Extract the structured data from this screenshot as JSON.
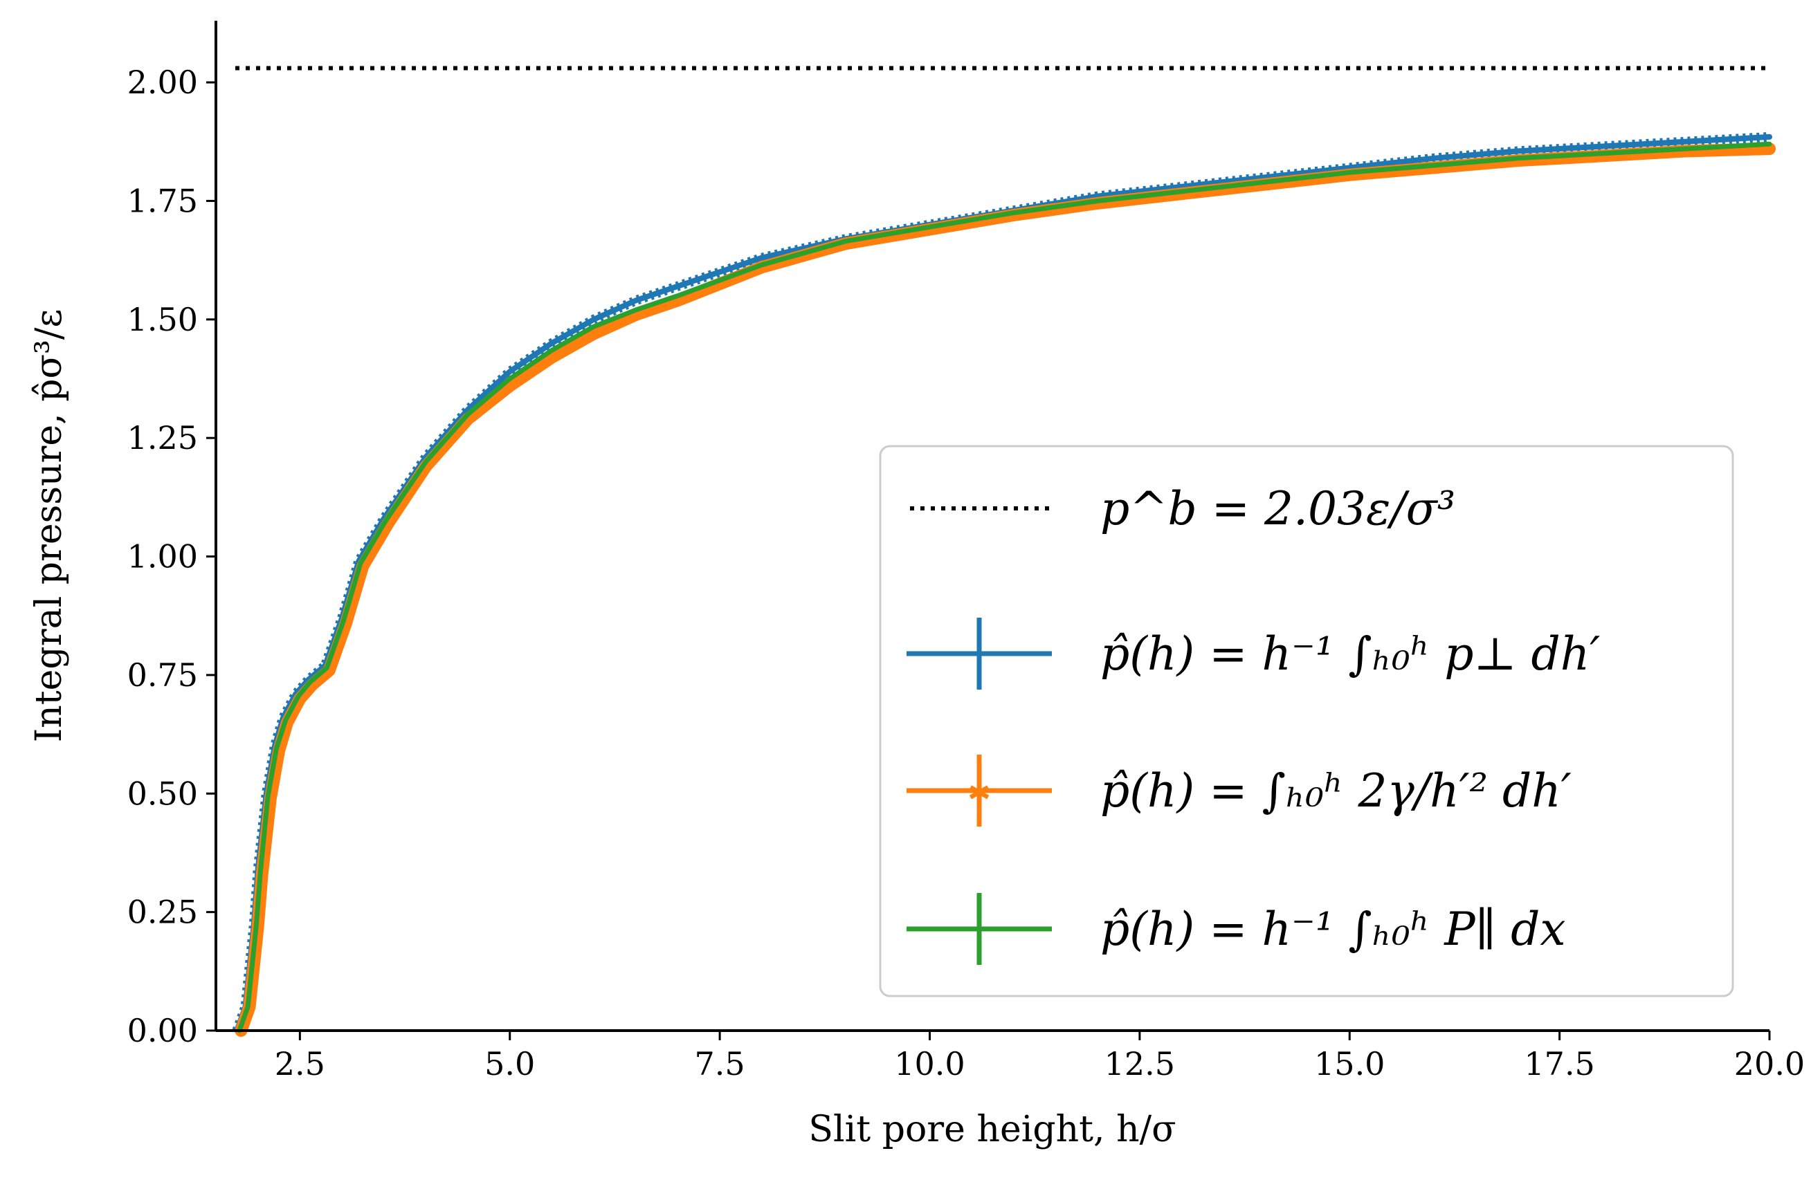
{
  "chart_data": {
    "type": "line",
    "title": "",
    "xlabel": "Slit pore height, h/σ",
    "ylabel": "Integral pressure, p̂σ³/ε",
    "xlim": [
      1.5,
      20.0
    ],
    "ylim": [
      0.0,
      2.13
    ],
    "x_ticks": [
      2.5,
      5.0,
      7.5,
      10.0,
      12.5,
      15.0,
      17.5,
      20.0
    ],
    "x_tick_labels": [
      "2.5",
      "5.0",
      "7.5",
      "10.0",
      "12.5",
      "15.0",
      "17.5",
      "20.0"
    ],
    "y_ticks": [
      0.0,
      0.25,
      0.5,
      0.75,
      1.0,
      1.25,
      1.5,
      1.75,
      2.0
    ],
    "y_tick_labels": [
      "0.00",
      "0.25",
      "0.50",
      "0.75",
      "1.00",
      "1.25",
      "1.50",
      "1.75",
      "2.00"
    ],
    "legend_position": "lower-right",
    "bulk_pressure": {
      "name": "p^b = 2.03ε/σ³",
      "value": 2.03,
      "color": "#000000",
      "style": "dotted"
    },
    "series": [
      {
        "name": "p̂(h) = h⁻¹ ∫ₕ₀ʰ p⊥ dh′",
        "color": "#1f77b4",
        "marker": "none",
        "x": [
          1.75,
          1.85,
          1.95,
          2.0,
          2.1,
          2.2,
          2.3,
          2.45,
          2.6,
          2.8,
          3.0,
          3.2,
          3.5,
          4.0,
          4.5,
          5.0,
          5.5,
          6.0,
          6.5,
          7.0,
          8.0,
          9.0,
          10.0,
          11.0,
          12.0,
          13.0,
          14.0,
          15.0,
          16.0,
          17.0,
          18.0,
          19.0,
          20.0
        ],
        "y": [
          0.0,
          0.05,
          0.22,
          0.34,
          0.5,
          0.6,
          0.66,
          0.71,
          0.74,
          0.77,
          0.87,
          0.99,
          1.08,
          1.21,
          1.31,
          1.39,
          1.45,
          1.5,
          1.54,
          1.57,
          1.63,
          1.67,
          1.7,
          1.73,
          1.76,
          1.78,
          1.8,
          1.82,
          1.84,
          1.855,
          1.865,
          1.875,
          1.885
        ]
      },
      {
        "name": "p̂(h) = ∫ₕ₀ʰ 2γ/h′² dh′",
        "color": "#ff7f0e",
        "marker": "x",
        "x": [
          1.8,
          1.9,
          2.0,
          2.05,
          2.15,
          2.25,
          2.35,
          2.5,
          2.65,
          2.85,
          3.05,
          3.25,
          3.55,
          4.0,
          4.5,
          5.0,
          5.5,
          6.0,
          6.5,
          7.0,
          8.0,
          9.0,
          10.0,
          11.0,
          12.0,
          13.0,
          14.0,
          15.0,
          16.0,
          17.0,
          18.0,
          19.0,
          20.0
        ],
        "y": [
          0.0,
          0.05,
          0.22,
          0.33,
          0.49,
          0.59,
          0.65,
          0.7,
          0.73,
          0.76,
          0.86,
          0.98,
          1.07,
          1.19,
          1.29,
          1.36,
          1.42,
          1.47,
          1.51,
          1.54,
          1.61,
          1.66,
          1.69,
          1.72,
          1.745,
          1.765,
          1.785,
          1.805,
          1.82,
          1.835,
          1.845,
          1.855,
          1.86
        ]
      },
      {
        "name": "p̂(h) = h⁻¹ ∫ₕ₀ʰ P∥ dx",
        "color": "#2ca02c",
        "marker": "none",
        "x": [
          1.78,
          1.88,
          1.98,
          2.03,
          2.12,
          2.22,
          2.33,
          2.48,
          2.62,
          2.82,
          3.02,
          3.22,
          3.52,
          4.0,
          4.5,
          5.0,
          5.5,
          6.0,
          6.5,
          7.0,
          8.0,
          9.0,
          10.0,
          11.0,
          12.0,
          13.0,
          14.0,
          15.0,
          16.0,
          17.0,
          18.0,
          19.0,
          20.0
        ],
        "y": [
          0.0,
          0.05,
          0.22,
          0.335,
          0.495,
          0.595,
          0.655,
          0.705,
          0.735,
          0.765,
          0.865,
          0.985,
          1.075,
          1.2,
          1.3,
          1.375,
          1.435,
          1.485,
          1.52,
          1.55,
          1.615,
          1.665,
          1.695,
          1.725,
          1.75,
          1.77,
          1.79,
          1.81,
          1.825,
          1.84,
          1.85,
          1.86,
          1.87
        ]
      }
    ]
  }
}
